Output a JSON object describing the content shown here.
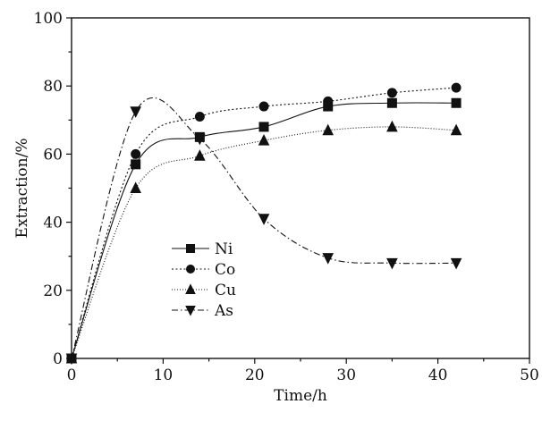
{
  "chart_data": {
    "type": "line",
    "title": "",
    "xlabel": "Time/h",
    "ylabel": "Extraction/%",
    "xlim": [
      0,
      50
    ],
    "ylim": [
      0,
      100
    ],
    "xticks": [
      0,
      10,
      20,
      30,
      40,
      50
    ],
    "yticks": [
      0,
      20,
      40,
      60,
      80,
      100
    ],
    "grid": false,
    "legend_position": "center-left",
    "series": [
      {
        "name": "Ni",
        "marker": "square",
        "dash": "solid",
        "x": [
          0,
          7,
          14,
          21,
          28,
          35,
          42
        ],
        "y": [
          0,
          57,
          65,
          68,
          74,
          75,
          75
        ]
      },
      {
        "name": "Co",
        "marker": "circle",
        "dash": "dot",
        "x": [
          0,
          7,
          14,
          21,
          28,
          35,
          42
        ],
        "y": [
          0,
          60,
          71,
          74,
          75.5,
          78,
          79.5
        ]
      },
      {
        "name": "Cu",
        "marker": "triangle-up",
        "dash": "dot-fine",
        "x": [
          0,
          7,
          14,
          21,
          28,
          35,
          42
        ],
        "y": [
          0,
          50,
          59.5,
          64,
          67,
          68,
          67
        ]
      },
      {
        "name": "As",
        "marker": "triangle-down",
        "dash": "dash-dot",
        "x": [
          0,
          7,
          14,
          21,
          28,
          35,
          42
        ],
        "y": [
          0,
          72.5,
          64.5,
          41,
          29.5,
          28,
          28
        ]
      }
    ]
  }
}
